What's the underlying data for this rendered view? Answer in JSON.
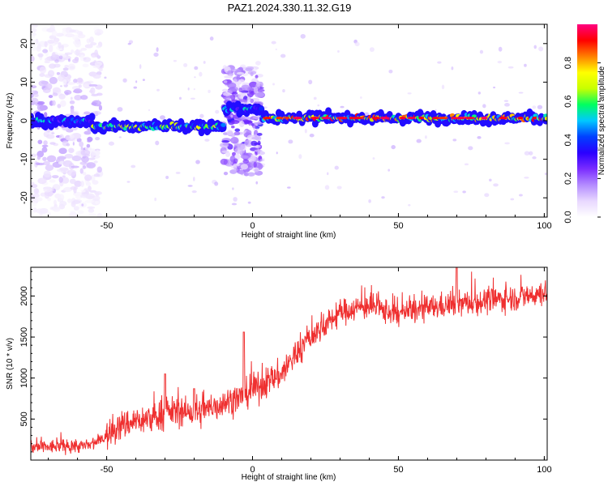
{
  "figure_title": "PAZ1.2024.330.11.32.G19",
  "colors": {
    "snr_line": "#ef3030",
    "spectrogram_background": "#ffffff",
    "colormap": [
      "#ffffff",
      "#e8d8ff",
      "#b48cff",
      "#7a2cff",
      "#2a00ff",
      "#0040ff",
      "#00c8ff",
      "#00ff60",
      "#c8ff00",
      "#ffff00",
      "#ff8000",
      "#ff0000",
      "#ff0080"
    ]
  },
  "chart_data": [
    {
      "type": "heatmap",
      "title": "",
      "xlabel": "Height of straight line (km)",
      "ylabel": "Frequency (Hz)",
      "xlim": [
        -76,
        101
      ],
      "ylim": [
        -25,
        25
      ],
      "xticks": [
        -50,
        0,
        50,
        100
      ],
      "yticks": [
        -20,
        -10,
        0,
        10,
        20
      ],
      "grid": false,
      "ridge": [
        {
          "x_start": -76,
          "x_end": -55,
          "frequency": 0.0
        },
        {
          "x_start": -55,
          "x_end": -10,
          "frequency": -1.5
        },
        {
          "x_start": -10,
          "x_end": 3,
          "frequency": 3.0
        },
        {
          "x_start": 3,
          "x_end": 101,
          "frequency": 0.7
        }
      ],
      "regions": [
        {
          "x_start": -76,
          "x_end": -52,
          "description_level": 0.2
        },
        {
          "x_start": -10,
          "x_end": 3,
          "description_level": 0.35
        }
      ],
      "colorbar": {
        "label": "Normalized spectral amplitude",
        "range": [
          0.0,
          1.0
        ],
        "ticks": [
          0.0,
          0.2,
          0.4,
          0.6,
          0.8
        ]
      }
    },
    {
      "type": "line",
      "title": "",
      "xlabel": "Height of straight line (km)",
      "ylabel": "SNR (10 * v/v)",
      "xlim": [
        -76,
        101
      ],
      "ylim": [
        0,
        2350
      ],
      "xticks": [
        -50,
        0,
        50,
        100
      ],
      "yticks": [
        500,
        1000,
        1500,
        2000
      ],
      "grid": false,
      "series": [
        {
          "name": "",
          "x": [
            -76,
            -70,
            -65,
            -60,
            -55,
            -50,
            -45,
            -40,
            -35,
            -30,
            -25,
            -20,
            -15,
            -10,
            -5,
            0,
            5,
            10,
            15,
            20,
            25,
            30,
            35,
            40,
            45,
            50,
            55,
            60,
            65,
            70,
            75,
            80,
            85,
            90,
            95,
            101
          ],
          "y": [
            150,
            160,
            170,
            170,
            180,
            300,
            420,
            480,
            500,
            580,
            600,
            550,
            620,
            700,
            750,
            850,
            950,
            1050,
            1300,
            1500,
            1650,
            1800,
            1850,
            1880,
            1820,
            1780,
            1820,
            1850,
            1880,
            1900,
            1920,
            1940,
            1960,
            1980,
            2000,
            2050
          ]
        }
      ],
      "peaks": [
        {
          "x": -30,
          "y": 1050
        },
        {
          "x": -20,
          "y": 870
        },
        {
          "x": -3,
          "y": 1560
        },
        {
          "x": 70,
          "y": 2350
        }
      ]
    }
  ]
}
